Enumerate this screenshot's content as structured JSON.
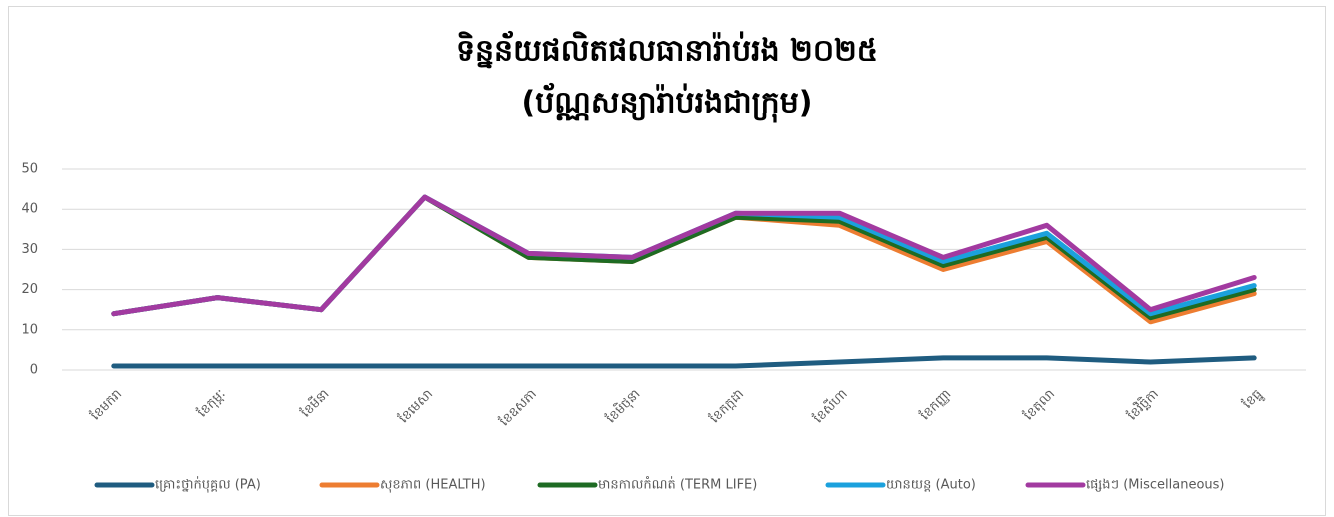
{
  "chart_data": {
    "type": "line",
    "stacked": true,
    "title": "ទិន្នន័យផលិតផលធានារ៉ាប់រង ២០២៥",
    "subtitle": "(ប័ណ្ណសន្យារ៉ាប់រងជាក្រុម)",
    "categories": [
      "ខែមករា",
      "ខែកុម្ភៈ",
      "ខែមីនា",
      "ខែមេសា",
      "ខែឧសភា",
      "ខែមិថុនា",
      "ខែកក្កដា",
      "ខែសីហា",
      "ខែកញ្ញា",
      "ខែតុលា",
      "ខែវិច្ឆិកា",
      "ខែធ្នូ"
    ],
    "series": [
      {
        "name": "គ្រោះថ្នាក់បុគ្គល (PA)",
        "color": "#1f5c80",
        "values": [
          1,
          1,
          1,
          1,
          1,
          1,
          1,
          2,
          3,
          3,
          2,
          3
        ]
      },
      {
        "name": "សុខភាព (HEALTH)",
        "color": "#ed7d31",
        "values": [
          13,
          17,
          14,
          42,
          27,
          26,
          37,
          34,
          22,
          29,
          10,
          16
        ]
      },
      {
        "name": "មានកាលកំណត់ (TERM LIFE)",
        "color": "#1e6b23",
        "values": [
          0,
          0,
          0,
          0,
          0,
          0,
          0,
          1,
          1,
          1,
          1,
          1
        ]
      },
      {
        "name": "យានយន្ត (Auto)",
        "color": "#1ba1dd",
        "values": [
          0,
          0,
          0,
          0,
          1,
          1,
          1,
          1,
          1,
          1,
          1,
          1
        ]
      },
      {
        "name": "ផ្សេងៗ (Miscellaneous)",
        "color": "#a23aa0",
        "values": [
          0,
          0,
          0,
          0,
          0,
          0,
          0,
          1,
          1,
          2,
          1,
          2
        ]
      }
    ],
    "ylim": [
      0,
      50
    ],
    "yticks": [
      0,
      10,
      20,
      30,
      40,
      50
    ],
    "grid": true,
    "legend": "bottom"
  }
}
